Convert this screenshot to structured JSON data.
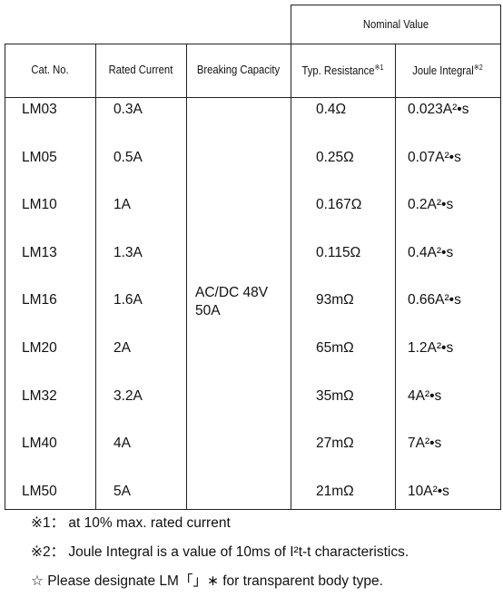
{
  "table": {
    "group_header": "Nominal Value",
    "columns": [
      {
        "label": "Cat. No."
      },
      {
        "label": "Rated Current"
      },
      {
        "label": "Breaking Capacity"
      },
      {
        "label": "Typ. Resistance",
        "note": "※1"
      },
      {
        "label": "Joule Integral",
        "note": "※2"
      }
    ],
    "breaking_capacity": [
      "AC/DC 48V",
      "50A"
    ],
    "rows": [
      [
        "LM03",
        "0.3A",
        "0.4Ω",
        "0.023A²•s"
      ],
      [
        "LM05",
        "0.5A",
        "0.25Ω",
        "0.07A²•s"
      ],
      [
        "LM10",
        "1A",
        "0.167Ω",
        "0.2A²•s"
      ],
      [
        "LM13",
        "1.3A",
        "0.115Ω",
        "0.4A²•s"
      ],
      [
        "LM16",
        "1.6A",
        "93mΩ",
        "0.66A²•s"
      ],
      [
        "LM20",
        "2A",
        "65mΩ",
        "1.2A²•s"
      ],
      [
        "LM32",
        "3.2A",
        "35mΩ",
        "4A²•s"
      ],
      [
        "LM40",
        "4A",
        "27mΩ",
        "7A²•s"
      ],
      [
        "LM50",
        "5A",
        "21mΩ",
        "10A²•s"
      ]
    ]
  },
  "footnotes": [
    "※1： at 10% max. rated current",
    "※2： Joule Integral is a value of 10ms of I²t-t characteristics.",
    "☆ Please designate LM「」∗ for transparent body type."
  ]
}
